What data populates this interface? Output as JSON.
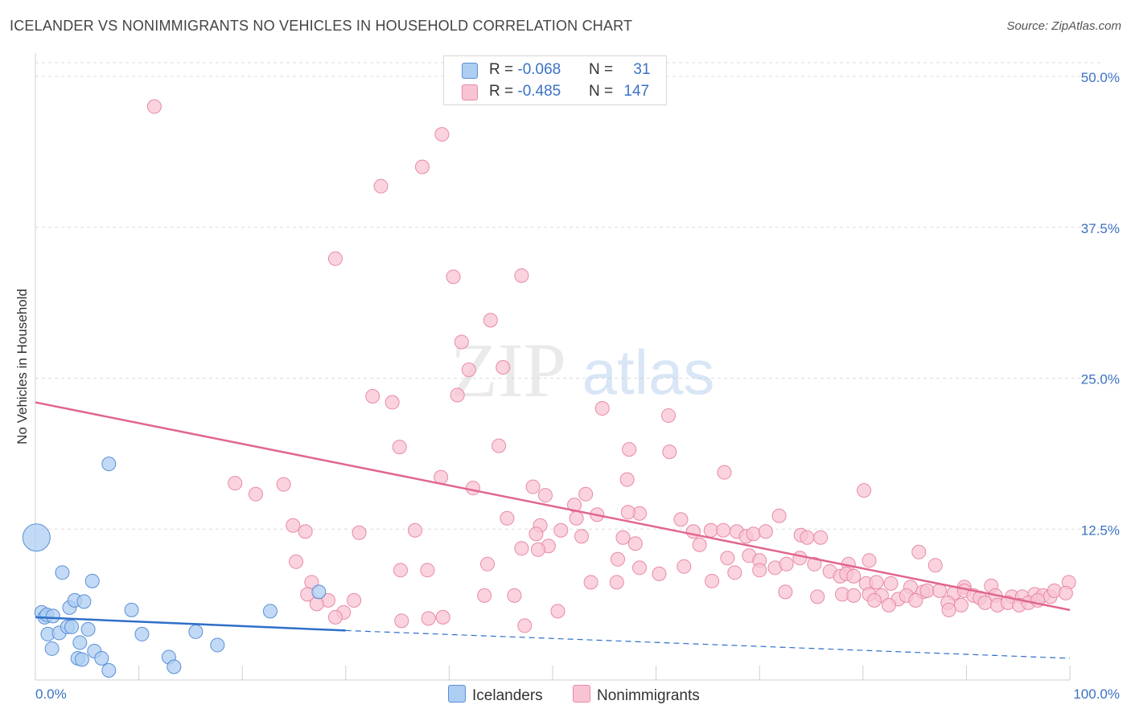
{
  "title": "ICELANDER VS NONIMMIGRANTS NO VEHICLES IN HOUSEHOLD CORRELATION CHART",
  "source": "Source: ZipAtlas.com",
  "watermark": {
    "zip": "ZIP",
    "atlas": "atlas"
  },
  "legend_top": [
    {
      "r_label": "R = ",
      "r_value": "-0.068",
      "n_label": "N = ",
      "n_value": "31",
      "color": "#aecdf2",
      "border": "#5b8fd6"
    },
    {
      "r_label": "R = ",
      "r_value": "-0.485",
      "n_label": "N = ",
      "n_value": "147",
      "color": "#f8c4d3",
      "border": "#e88aa5"
    }
  ],
  "legend_bottom": [
    {
      "label": "Icelanders",
      "color": "#aecdf2",
      "border": "#5b8fd6"
    },
    {
      "label": "Nonimmigrants",
      "color": "#f8c4d3",
      "border": "#e88aa5"
    }
  ],
  "chart_data": {
    "type": "scatter",
    "title": "ICELANDER VS NONIMMIGRANTS NO VEHICLES IN HOUSEHOLD CORRELATION CHART",
    "xlabel": "",
    "ylabel": "No Vehicles in Household",
    "xlim": [
      0,
      100
    ],
    "ylim": [
      0,
      50
    ],
    "x_tick_labels": [
      "0.0%",
      "100.0%"
    ],
    "y_ticks": [
      12.5,
      25.0,
      37.5,
      50.0
    ],
    "y_tick_labels": [
      "12.5%",
      "25.0%",
      "37.5%",
      "50.0%"
    ],
    "grid": "horizontal dashed",
    "series": [
      {
        "name": "Icelanders",
        "color": "#5b8fd6",
        "fill": "#aecdf2",
        "trend": {
          "x0": 0,
          "y0": 5.2,
          "x1": 30,
          "y1": 4.1,
          "dashed_to_x": 100,
          "dashed_to_y": 1.8,
          "color": "#2f6fc9"
        },
        "points": [
          [
            0.1,
            11.8,
            "large"
          ],
          [
            0.6,
            5.6
          ],
          [
            0.9,
            5.2
          ],
          [
            1.1,
            5.4
          ],
          [
            1.7,
            5.3
          ],
          [
            1.2,
            3.8
          ],
          [
            1.6,
            2.6
          ],
          [
            2.3,
            3.9
          ],
          [
            2.6,
            8.9
          ],
          [
            3.1,
            4.4
          ],
          [
            3.3,
            6.0
          ],
          [
            3.5,
            4.4
          ],
          [
            3.8,
            6.6
          ],
          [
            4.1,
            1.8
          ],
          [
            4.3,
            3.1
          ],
          [
            4.5,
            1.7
          ],
          [
            4.7,
            6.5
          ],
          [
            5.1,
            4.2
          ],
          [
            5.5,
            8.2
          ],
          [
            5.7,
            2.4
          ],
          [
            6.4,
            1.8
          ],
          [
            7.1,
            0.8
          ],
          [
            7.1,
            17.9
          ],
          [
            9.3,
            5.8
          ],
          [
            10.3,
            3.8
          ],
          [
            12.9,
            1.9
          ],
          [
            13.4,
            1.1
          ],
          [
            15.5,
            4.0
          ],
          [
            17.6,
            2.9
          ],
          [
            22.7,
            5.7
          ],
          [
            27.4,
            7.3
          ]
        ]
      },
      {
        "name": "Nonimmigrants",
        "color": "#e88aa5",
        "fill": "#f8c4d3",
        "trend": {
          "x0": 0,
          "y0": 23.0,
          "x1": 100,
          "y1": 5.8,
          "color": "#e0668f"
        },
        "points": [
          [
            11.5,
            47.5
          ],
          [
            39.3,
            45.2
          ],
          [
            37.4,
            42.5
          ],
          [
            33.4,
            40.9
          ],
          [
            29.0,
            34.9
          ],
          [
            40.4,
            33.4
          ],
          [
            47.0,
            33.5
          ],
          [
            44.0,
            29.8
          ],
          [
            41.2,
            28.0
          ],
          [
            41.9,
            25.7
          ],
          [
            45.2,
            25.9
          ],
          [
            32.6,
            23.5
          ],
          [
            34.5,
            23.0
          ],
          [
            40.8,
            23.6
          ],
          [
            54.8,
            22.5
          ],
          [
            61.2,
            21.9
          ],
          [
            35.2,
            19.3
          ],
          [
            44.8,
            19.4
          ],
          [
            57.4,
            19.1
          ],
          [
            61.3,
            18.9
          ],
          [
            39.2,
            16.8
          ],
          [
            57.2,
            16.6
          ],
          [
            66.6,
            17.2
          ],
          [
            19.3,
            16.3
          ],
          [
            21.3,
            15.4
          ],
          [
            24.0,
            16.2
          ],
          [
            42.3,
            15.9
          ],
          [
            48.1,
            16.0
          ],
          [
            49.3,
            15.3
          ],
          [
            53.2,
            15.4
          ],
          [
            80.1,
            15.7
          ],
          [
            52.1,
            14.5
          ],
          [
            54.3,
            13.7
          ],
          [
            58.4,
            13.8
          ],
          [
            45.6,
            13.4
          ],
          [
            48.8,
            12.8
          ],
          [
            52.3,
            13.4
          ],
          [
            57.3,
            13.9
          ],
          [
            62.4,
            13.3
          ],
          [
            71.9,
            13.6
          ],
          [
            24.9,
            12.8
          ],
          [
            26.1,
            12.3
          ],
          [
            31.3,
            12.2
          ],
          [
            36.7,
            12.4
          ],
          [
            48.4,
            12.1
          ],
          [
            50.8,
            12.4
          ],
          [
            52.8,
            11.9
          ],
          [
            56.8,
            11.8
          ],
          [
            63.6,
            12.3
          ],
          [
            65.3,
            12.4
          ],
          [
            66.5,
            12.4
          ],
          [
            67.8,
            12.3
          ],
          [
            68.7,
            11.9
          ],
          [
            69.4,
            12.1
          ],
          [
            70.6,
            12.3
          ],
          [
            74.0,
            12.0
          ],
          [
            74.6,
            11.8
          ],
          [
            75.9,
            11.8
          ],
          [
            49.6,
            11.1
          ],
          [
            58.0,
            11.3
          ],
          [
            64.2,
            11.2
          ],
          [
            48.6,
            10.8
          ],
          [
            47.0,
            10.9
          ],
          [
            66.9,
            10.1
          ],
          [
            69.0,
            10.3
          ],
          [
            70.0,
            9.9
          ],
          [
            71.5,
            9.3
          ],
          [
            73.9,
            10.1
          ],
          [
            75.3,
            9.6
          ],
          [
            78.6,
            9.6
          ],
          [
            80.6,
            9.9
          ],
          [
            85.4,
            10.6
          ],
          [
            87.0,
            9.5
          ],
          [
            25.2,
            9.8
          ],
          [
            43.7,
            9.6
          ],
          [
            56.3,
            10.0
          ],
          [
            58.4,
            9.3
          ],
          [
            62.7,
            9.4
          ],
          [
            72.6,
            9.6
          ],
          [
            35.3,
            9.1
          ],
          [
            37.9,
            9.1
          ],
          [
            60.3,
            8.8
          ],
          [
            65.4,
            8.2
          ],
          [
            67.6,
            8.9
          ],
          [
            70.0,
            9.1
          ],
          [
            76.8,
            9.0
          ],
          [
            77.8,
            8.6
          ],
          [
            78.4,
            8.8
          ],
          [
            79.1,
            8.6
          ],
          [
            80.3,
            8.0
          ],
          [
            81.3,
            8.1
          ],
          [
            82.7,
            8.0
          ],
          [
            84.6,
            7.7
          ],
          [
            26.7,
            8.1
          ],
          [
            53.7,
            8.1
          ],
          [
            56.2,
            8.1
          ],
          [
            89.8,
            7.7
          ],
          [
            92.4,
            7.8
          ],
          [
            99.9,
            8.1
          ],
          [
            26.3,
            7.1
          ],
          [
            28.3,
            6.6
          ],
          [
            30.8,
            6.6
          ],
          [
            43.4,
            7.0
          ],
          [
            46.3,
            7.0
          ],
          [
            72.5,
            7.3
          ],
          [
            75.6,
            6.9
          ],
          [
            78.0,
            7.1
          ],
          [
            79.1,
            7.0
          ],
          [
            80.6,
            7.1
          ],
          [
            81.8,
            7.0
          ],
          [
            83.4,
            6.7
          ],
          [
            84.2,
            7.0
          ],
          [
            85.8,
            7.3
          ],
          [
            86.2,
            7.4
          ],
          [
            87.4,
            7.4
          ],
          [
            88.8,
            7.2
          ],
          [
            89.8,
            7.4
          ],
          [
            90.7,
            7.0
          ],
          [
            91.3,
            6.8
          ],
          [
            92.8,
            7.0
          ],
          [
            94.4,
            6.9
          ],
          [
            95.4,
            6.9
          ],
          [
            96.6,
            7.1
          ],
          [
            97.4,
            7.0
          ],
          [
            98.1,
            6.9
          ],
          [
            98.5,
            7.4
          ],
          [
            99.6,
            7.2
          ],
          [
            27.2,
            6.3
          ],
          [
            81.1,
            6.6
          ],
          [
            82.5,
            6.2
          ],
          [
            85.1,
            6.6
          ],
          [
            88.2,
            6.4
          ],
          [
            89.5,
            6.2
          ],
          [
            91.8,
            6.4
          ],
          [
            93.0,
            6.2
          ],
          [
            94.0,
            6.4
          ],
          [
            95.1,
            6.2
          ],
          [
            96.0,
            6.4
          ],
          [
            96.9,
            6.6
          ],
          [
            29.8,
            5.6
          ],
          [
            35.4,
            4.9
          ],
          [
            38.0,
            5.1
          ],
          [
            39.4,
            5.2
          ],
          [
            50.5,
            5.7
          ],
          [
            88.3,
            5.8
          ],
          [
            29.0,
            5.2
          ],
          [
            47.3,
            4.5
          ]
        ]
      }
    ]
  }
}
